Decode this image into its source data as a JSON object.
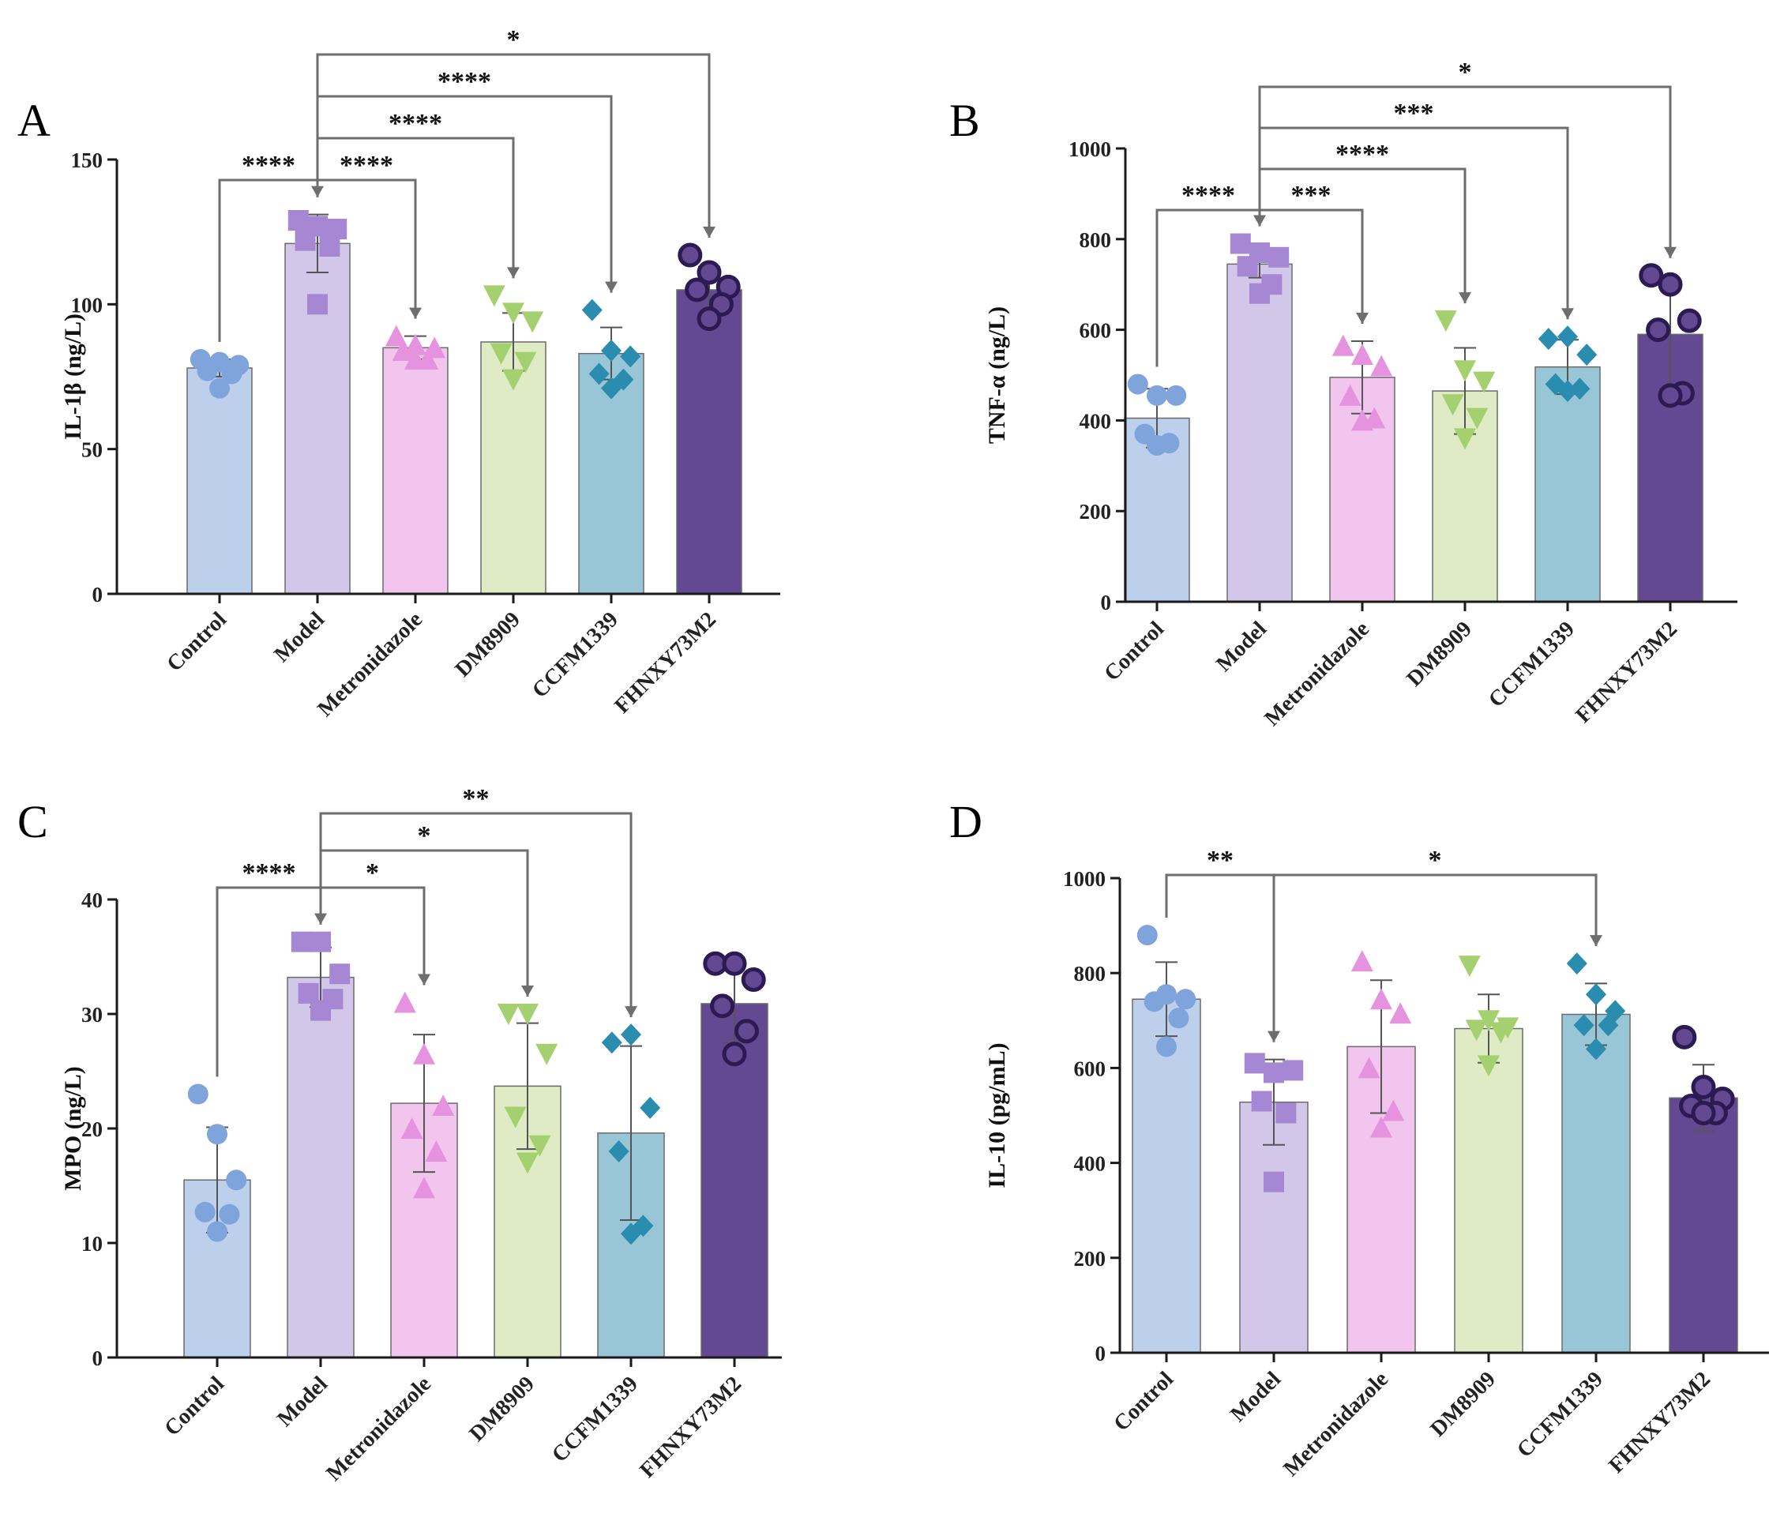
{
  "figure": {
    "description_labels": [
      "A",
      "B",
      "C",
      "D"
    ]
  },
  "colors": {
    "Control": "#bccfeb",
    "Model": "#d3c7e9",
    "Metronidazole": "#f2c5ee",
    "DM8909": "#deebc4",
    "CCFM1339": "#99c6d7",
    "FHNXY73M2": "#634892"
  },
  "marker_colors": {
    "Control": "#7fa3db",
    "Model": "#a687d4",
    "Metronidazole": "#e693df",
    "DM8909": "#a4d070",
    "CCFM1339": "#2a8caf",
    "FHNXY73M2": "#4b2c82"
  },
  "marker_shapes": {
    "Control": "circle",
    "Model": "square",
    "Metronidazole": "triangle-up",
    "DM8909": "triangle-down",
    "CCFM1339": "diamond",
    "FHNXY73M2": "circle-hollow"
  },
  "chart_data": [
    {
      "panel": "A",
      "type": "bar",
      "categories": [
        "Control",
        "Model",
        "Metronidazole",
        "DM8909",
        "CCFM1339",
        "FHNXY73M2"
      ],
      "ylabel": "IL-1β (ng/L)",
      "ylim": [
        0,
        150
      ],
      "yticks": [
        0,
        50,
        100,
        150
      ],
      "means": [
        78,
        121,
        85,
        87,
        83,
        105
      ],
      "sd": [
        3,
        10,
        4,
        10,
        9,
        8
      ],
      "points": [
        [
          81,
          80,
          79,
          77,
          76,
          71
        ],
        [
          129,
          127,
          126,
          122,
          120,
          100
        ],
        [
          89,
          86,
          85,
          84,
          81,
          81
        ],
        [
          103,
          97,
          94,
          83,
          80,
          74
        ],
        [
          98,
          84,
          82,
          76,
          74,
          71
        ],
        [
          117,
          111,
          106,
          105,
          100,
          95
        ]
      ],
      "comparisons": [
        {
          "from": 0,
          "to": 1,
          "label": "****",
          "level": 0
        },
        {
          "from": 1,
          "to": 2,
          "label": "****",
          "level": 0
        },
        {
          "from": 1,
          "to": 3,
          "label": "****",
          "level": 1
        },
        {
          "from": 1,
          "to": 4,
          "label": "****",
          "level": 2
        },
        {
          "from": 1,
          "to": 5,
          "label": "*",
          "level": 3
        }
      ]
    },
    {
      "panel": "B",
      "type": "bar",
      "categories": [
        "Control",
        "Model",
        "Metronidazole",
        "DM8909",
        "CCFM1339",
        "FHNXY73M2"
      ],
      "ylabel": "TNF-α (ng/L)",
      "ylim": [
        0,
        1000
      ],
      "yticks": [
        0,
        200,
        400,
        600,
        800,
        1000
      ],
      "means": [
        405,
        745,
        495,
        465,
        518,
        590
      ],
      "sd": [
        65,
        30,
        80,
        95,
        60,
        120
      ],
      "points": [
        [
          480,
          455,
          455,
          370,
          350,
          345
        ],
        [
          790,
          770,
          760,
          740,
          700,
          680
        ],
        [
          565,
          545,
          520,
          455,
          405,
          400
        ],
        [
          620,
          510,
          485,
          435,
          405,
          360
        ],
        [
          580,
          585,
          545,
          480,
          470,
          465
        ],
        [
          720,
          700,
          620,
          600,
          460,
          455
        ]
      ],
      "comparisons": [
        {
          "from": 0,
          "to": 1,
          "label": "****",
          "level": 0
        },
        {
          "from": 1,
          "to": 2,
          "label": "***",
          "level": 0
        },
        {
          "from": 1,
          "to": 3,
          "label": "****",
          "level": 1
        },
        {
          "from": 1,
          "to": 4,
          "label": "***",
          "level": 2
        },
        {
          "from": 1,
          "to": 5,
          "label": "*",
          "level": 3
        }
      ]
    },
    {
      "panel": "C",
      "type": "bar",
      "categories": [
        "Control",
        "Model",
        "Metronidazole",
        "DM8909",
        "CCFM1339",
        "FHNXY73M2"
      ],
      "ylabel": "MPO (ng/L)",
      "ylim": [
        0,
        40
      ],
      "yticks": [
        0,
        10,
        20,
        30,
        40
      ],
      "means": [
        15.5,
        33.2,
        22.2,
        23.7,
        19.6,
        30.9
      ],
      "sd": [
        4.6,
        2.6,
        6.0,
        5.5,
        7.6,
        3.4
      ],
      "points": [
        [
          23,
          19.5,
          15.5,
          12.7,
          12.5,
          11
        ],
        [
          36.3,
          36.3,
          33.5,
          31.8,
          31.3,
          30.3
        ],
        [
          31,
          26.5,
          22,
          20,
          18,
          14.8
        ],
        [
          30,
          30,
          26.5,
          21,
          18.5,
          17
        ],
        [
          27.5,
          28.2,
          21.8,
          18,
          11.5,
          10.8
        ],
        [
          34.4,
          34.4,
          33,
          30.7,
          28.5,
          26.5
        ]
      ],
      "comparisons": [
        {
          "from": 0,
          "to": 1,
          "label": "****",
          "level": 0
        },
        {
          "from": 1,
          "to": 2,
          "label": "*",
          "level": 0
        },
        {
          "from": 1,
          "to": 3,
          "label": "*",
          "level": 1
        },
        {
          "from": 1,
          "to": 4,
          "label": "**",
          "level": 2
        }
      ]
    },
    {
      "panel": "D",
      "type": "bar",
      "categories": [
        "Control",
        "Model",
        "Metronidazole",
        "DM8909",
        "CCFM1339",
        "FHNXY73M2"
      ],
      "ylabel": "IL-10 (pg/mL)",
      "ylim": [
        0,
        1000
      ],
      "yticks": [
        0,
        200,
        400,
        600,
        800,
        1000
      ],
      "means": [
        745,
        528,
        645,
        683,
        713,
        537
      ],
      "sd": [
        78,
        90,
        140,
        72,
        65,
        70
      ],
      "points": [
        [
          880,
          755,
          745,
          740,
          705,
          645
        ],
        [
          610,
          590,
          595,
          530,
          505,
          360
        ],
        [
          825,
          745,
          715,
          600,
          510,
          475
        ],
        [
          815,
          700,
          685,
          680,
          675,
          605
        ],
        [
          820,
          755,
          720,
          690,
          690,
          640
        ],
        [
          665,
          560,
          535,
          520,
          505,
          505
        ]
      ],
      "comparisons": [
        {
          "from": 0,
          "to": 1,
          "label": "**",
          "level": 0
        },
        {
          "from": 1,
          "to": 4,
          "label": "*",
          "level": 0
        }
      ]
    }
  ]
}
